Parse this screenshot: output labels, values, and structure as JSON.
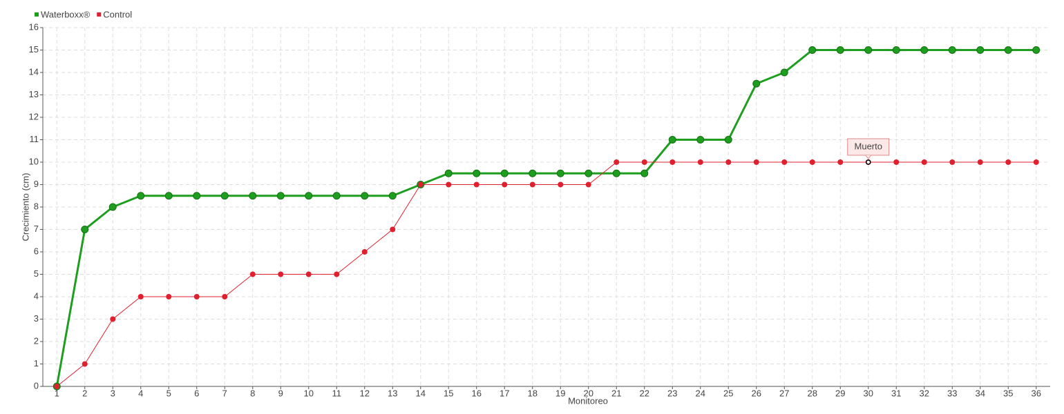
{
  "chart_data": {
    "type": "line",
    "x": [
      1,
      2,
      3,
      4,
      5,
      6,
      7,
      8,
      9,
      10,
      11,
      12,
      13,
      14,
      15,
      16,
      17,
      18,
      19,
      20,
      21,
      22,
      23,
      24,
      25,
      26,
      27,
      28,
      29,
      30,
      31,
      32,
      33,
      34,
      35,
      36
    ],
    "xlim": [
      0.5,
      36.5
    ],
    "xticks": [
      1,
      2,
      3,
      4,
      5,
      6,
      7,
      8,
      9,
      10,
      11,
      12,
      13,
      14,
      15,
      16,
      17,
      18,
      19,
      20,
      21,
      22,
      23,
      24,
      25,
      26,
      27,
      28,
      29,
      30,
      31,
      32,
      33,
      34,
      35,
      36
    ],
    "ylim": [
      0,
      16
    ],
    "yticks": [
      0,
      1,
      2,
      3,
      4,
      5,
      6,
      7,
      8,
      9,
      10,
      11,
      12,
      13,
      14,
      15,
      16
    ],
    "x_label": "Monitoreo",
    "y_label": "Crecimiento (cm)",
    "grid": true,
    "legend": "top-left",
    "series": [
      {
        "name": "Waterboxx®",
        "color": "#1e9e1e",
        "values": [
          0,
          7,
          8,
          8.5,
          8.5,
          8.5,
          8.5,
          8.5,
          8.5,
          8.5,
          8.5,
          8.5,
          8.5,
          9,
          9.5,
          9.5,
          9.5,
          9.5,
          9.5,
          9.5,
          9.5,
          9.5,
          11,
          11,
          11,
          13.5,
          14,
          15,
          15,
          15,
          15,
          15,
          15,
          15,
          15,
          15
        ]
      },
      {
        "name": "Control",
        "color": "#e0202e",
        "values": [
          0,
          1,
          3,
          4,
          4,
          4,
          4,
          5,
          5,
          5,
          5,
          6,
          7,
          9,
          9,
          9,
          9,
          9,
          9,
          9,
          10,
          10,
          10,
          10,
          10,
          10,
          10,
          10,
          10,
          10,
          10,
          10,
          10,
          10,
          10,
          10
        ]
      }
    ],
    "annotations": [
      {
        "text": "Muerto",
        "x": 30,
        "y": 10
      }
    ]
  }
}
